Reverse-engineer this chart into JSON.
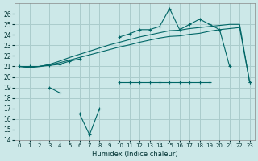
{
  "xlabel": "Humidex (Indice chaleur)",
  "bg_color": "#cce8e8",
  "line_color": "#006666",
  "grid_color": "#aacccc",
  "ylim": [
    14,
    27
  ],
  "xlim": [
    -0.5,
    23.5
  ],
  "yticks": [
    14,
    15,
    16,
    17,
    18,
    19,
    20,
    21,
    22,
    23,
    24,
    25,
    26
  ],
  "xticks": [
    0,
    1,
    2,
    3,
    4,
    5,
    6,
    7,
    8,
    9,
    10,
    11,
    12,
    13,
    14,
    15,
    16,
    17,
    18,
    19,
    20,
    21,
    22,
    23
  ],
  "x": [
    0,
    1,
    2,
    3,
    4,
    5,
    6,
    7,
    8,
    9,
    10,
    11,
    12,
    13,
    14,
    15,
    16,
    17,
    18,
    19,
    20,
    21,
    22,
    23
  ],
  "y_jagged_upper": [
    21,
    21,
    21,
    21.1,
    21.2,
    21.5,
    21.7,
    null,
    null,
    null,
    23.8,
    24.1,
    24.5,
    24.5,
    24.8,
    26.5,
    24.5,
    25.0,
    25.5,
    25.0,
    24.5,
    21.0,
    null,
    19.5
  ],
  "y_smooth_upper": [
    21,
    20.9,
    21.0,
    21.2,
    21.5,
    21.85,
    22.15,
    22.45,
    22.75,
    23.05,
    23.3,
    23.55,
    23.8,
    24.0,
    24.2,
    24.4,
    24.45,
    24.6,
    24.7,
    24.8,
    24.9,
    25.0,
    25.0,
    19.5
  ],
  "y_smooth_lower": [
    21,
    20.9,
    21.0,
    21.15,
    21.35,
    21.6,
    21.85,
    22.1,
    22.35,
    22.6,
    22.85,
    23.05,
    23.3,
    23.5,
    23.7,
    23.85,
    23.9,
    24.05,
    24.15,
    24.35,
    24.5,
    24.6,
    24.7,
    19.5
  ],
  "y_jagged_lower": [
    null,
    null,
    null,
    19.0,
    18.5,
    null,
    16.5,
    14.5,
    17.0,
    null,
    19.5,
    19.5,
    19.5,
    19.5,
    19.5,
    19.5,
    19.5,
    19.5,
    19.5,
    19.5,
    null,
    null,
    null,
    19.5
  ],
  "figsize": [
    3.2,
    2.0
  ],
  "dpi": 100
}
